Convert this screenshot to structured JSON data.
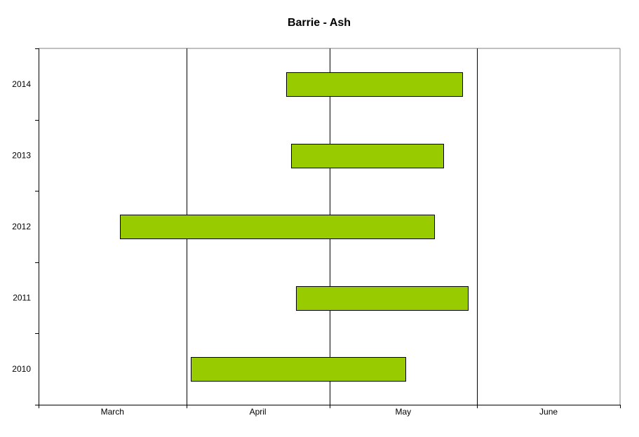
{
  "chart_data": {
    "type": "bar",
    "orientation": "horizontal-range",
    "title": "Barrie - Ash",
    "xlabel": "",
    "ylabel": "",
    "x_ticks": [
      {
        "label": "March",
        "start": "2000-03-01",
        "end": "2000-04-01"
      },
      {
        "label": "April",
        "start": "2000-04-01",
        "end": "2000-05-01"
      },
      {
        "label": "May",
        "start": "2000-05-01",
        "end": "2000-06-01"
      },
      {
        "label": "June",
        "start": "2000-06-01",
        "end": "2000-07-01"
      }
    ],
    "xlim": [
      "2000-03-01",
      "2000-07-01"
    ],
    "categories": [
      "2010",
      "2011",
      "2012",
      "2013",
      "2014"
    ],
    "series": [
      {
        "ranges": [
          {
            "start": "2000-04-02",
            "end": "2000-05-17"
          },
          {
            "start": "2000-04-24",
            "end": "2000-05-30"
          },
          {
            "start": "2000-03-18",
            "end": "2000-05-23"
          },
          {
            "start": "2000-04-23",
            "end": "2000-05-25"
          },
          {
            "start": "2000-04-22",
            "end": "2000-05-29"
          }
        ]
      }
    ],
    "grid": {
      "vertical": true,
      "horizontal": false
    },
    "colors": {
      "bar_fill": "#99CC00",
      "bar_stroke": "#000000",
      "gridline": "#000000",
      "axis": "#000000",
      "plot_border": "#808080",
      "background": "#FFFFFF"
    }
  }
}
